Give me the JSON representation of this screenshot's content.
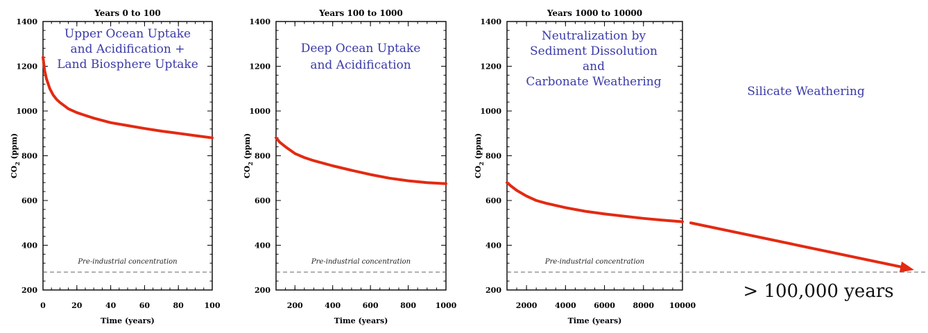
{
  "chart_data": [
    {
      "type": "line",
      "title": "Years  0 to 100",
      "annotation": [
        "Upper Ocean Uptake",
        "and Acidification +",
        "Land Biosphere Uptake"
      ],
      "xlabel": "Time (years)",
      "ylabel": "CO2 (ppm)",
      "ylabel_main": "CO",
      "ylabel_sub": "2",
      "ylabel_unit": " (ppm)",
      "xlim": [
        0,
        100
      ],
      "ylim": [
        200,
        1400
      ],
      "xticks": [
        0,
        20,
        40,
        60,
        80,
        100
      ],
      "xtick_labels": [
        "0",
        "20",
        "40",
        "60",
        "80",
        "100"
      ],
      "yticks": [
        200,
        400,
        600,
        800,
        1000,
        1200,
        1400
      ],
      "ytick_labels": [
        "200",
        "400",
        "600",
        "800",
        "1000",
        "1200",
        "1400"
      ],
      "baseline_label": "Pre-industrial concentration",
      "baseline_value": 280,
      "series": [
        {
          "color": "#e32a12",
          "x": [
            0,
            1,
            2,
            4,
            6,
            8,
            10,
            15,
            20,
            25,
            30,
            40,
            50,
            60,
            70,
            80,
            90,
            100
          ],
          "y": [
            1240,
            1180,
            1145,
            1100,
            1072,
            1052,
            1038,
            1010,
            993,
            980,
            968,
            948,
            935,
            922,
            910,
            900,
            890,
            880
          ]
        }
      ]
    },
    {
      "type": "line",
      "title": "Years 100 to 1000",
      "annotation": [
        "Deep Ocean Uptake",
        "and Acidification"
      ],
      "xlabel": "Time (years)",
      "ylabel": "CO2 (ppm)",
      "ylabel_main": "CO",
      "ylabel_sub": "2",
      "ylabel_unit": " (ppm)",
      "xlim": [
        100,
        1000
      ],
      "ylim": [
        200,
        1400
      ],
      "xticks": [
        200,
        400,
        600,
        800,
        1000
      ],
      "xtick_labels": [
        "200",
        "400",
        "600",
        "800",
        "1000"
      ],
      "yticks": [
        200,
        400,
        600,
        800,
        1000,
        1200,
        1400
      ],
      "ytick_labels": [
        "200",
        "400",
        "600",
        "800",
        "1000",
        "1200",
        "1400"
      ],
      "baseline_label": "Pre-industrial concentration",
      "baseline_value": 280,
      "series": [
        {
          "color": "#e32a12",
          "x": [
            100,
            120,
            150,
            200,
            250,
            300,
            400,
            500,
            600,
            700,
            800,
            900,
            1000
          ],
          "y": [
            880,
            860,
            840,
            810,
            792,
            778,
            755,
            735,
            716,
            700,
            688,
            680,
            675
          ]
        }
      ]
    },
    {
      "type": "line",
      "title": "Years 1000 to 10000",
      "annotation": [
        "Neutralization by",
        "Sediment Dissolution",
        "and",
        "Carbonate Weathering"
      ],
      "xlabel": "Time (years)",
      "ylabel": "CO2 (ppm)",
      "ylabel_main": "CO",
      "ylabel_sub": "2",
      "ylabel_unit": " (ppm)",
      "xlim": [
        1000,
        10000
      ],
      "ylim": [
        200,
        1400
      ],
      "xticks": [
        2000,
        4000,
        6000,
        8000,
        10000
      ],
      "xtick_labels": [
        "2000",
        "4000",
        "6000",
        "8000",
        "10000"
      ],
      "yticks": [
        200,
        400,
        600,
        800,
        1000,
        1200,
        1400
      ],
      "ytick_labels": [
        "200",
        "400",
        "600",
        "800",
        "1000",
        "1200",
        "1400"
      ],
      "baseline_label": "Pre-industrial concentration",
      "baseline_value": 280,
      "series": [
        {
          "color": "#e32a12",
          "x": [
            1000,
            1200,
            1500,
            2000,
            2500,
            3000,
            4000,
            5000,
            6000,
            7000,
            8000,
            9000,
            10000
          ],
          "y": [
            680,
            665,
            645,
            620,
            600,
            588,
            568,
            552,
            540,
            530,
            520,
            512,
            505
          ]
        }
      ]
    }
  ],
  "extension": {
    "annotation": "Silicate Weathering",
    "time_label": "> 100,000 years",
    "start_value": 500,
    "end_value": 290
  }
}
